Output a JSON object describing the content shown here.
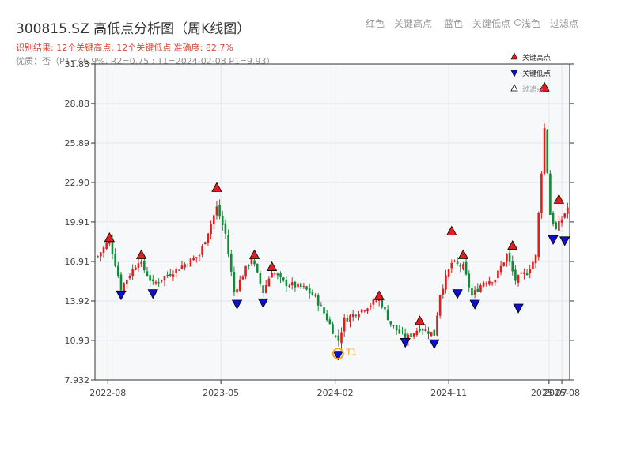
{
  "header": {
    "title": "300815.SZ 高低点分析图（周K线图）",
    "result_line": "识别结果: 12个关键高点, 12个关键低点  准确度: 82.7%",
    "quality_line": "优质：否（P1=46.9%, R2=0.75 ; T1=2024-02-08 P1=9.93）"
  },
  "top_legend": {
    "red": "红色—关键高点",
    "blue": "蓝色—关键低点",
    "light": "浅色—过滤点"
  },
  "colors": {
    "up": "#e11d1d",
    "down": "#138a38",
    "high_marker": "#e11d1d",
    "low_marker": "#1010cc",
    "t1_marker": "#f5a623",
    "plot_bg": "#f6f8fa",
    "grid": "#e3e6ea"
  },
  "chart_data": {
    "type": "candlestick",
    "title": "300815.SZ 高低点分析图（周K线图）",
    "x_ticks": [
      "2022-08",
      "2023-05",
      "2024-02",
      "2024-11",
      "2025-07",
      "2025-08"
    ],
    "y_ticks": [
      "7.932",
      "10.93",
      "13.92",
      "16.91",
      "19.91",
      "22.90",
      "25.89",
      "28.88",
      "31.88"
    ],
    "ylim": [
      7.932,
      31.88
    ],
    "x_range": [
      "2022-07-01",
      "2025-08-20"
    ],
    "legend": {
      "position": "top-right",
      "items": [
        {
          "label": "关键高点",
          "symbol": "triangle-up",
          "color": "#e11d1d"
        },
        {
          "label": "关键低点",
          "symbol": "triangle-down",
          "color": "#1010cc"
        },
        {
          "label": "过滤点",
          "symbol": "triangle-up-hollow",
          "color": "#000000"
        }
      ]
    },
    "anchors": [
      [
        "2022-07-08",
        17.3
      ],
      [
        "2022-08-05",
        18.6
      ],
      [
        "2022-09-02",
        14.9
      ],
      [
        "2022-10-14",
        17.0
      ],
      [
        "2022-11-18",
        15.2
      ],
      [
        "2023-01-13",
        16.3
      ],
      [
        "2023-03-10",
        17.4
      ],
      [
        "2023-04-21",
        21.0
      ],
      [
        "2023-05-12",
        19.0
      ],
      [
        "2023-06-02",
        14.6
      ],
      [
        "2023-07-14",
        17.2
      ],
      [
        "2023-08-11",
        14.6
      ],
      [
        "2023-09-01",
        16.2
      ],
      [
        "2023-09-29",
        15.3
      ],
      [
        "2023-11-17",
        14.9
      ],
      [
        "2023-12-15",
        14.2
      ],
      [
        "2024-01-12",
        12.6
      ],
      [
        "2024-02-08",
        10.8
      ],
      [
        "2024-02-23",
        12.5
      ],
      [
        "2024-04-12",
        13.4
      ],
      [
        "2024-05-17",
        14.1
      ],
      [
        "2024-06-14",
        12.2
      ],
      [
        "2024-07-19",
        11.0
      ],
      [
        "2024-08-23",
        11.9
      ],
      [
        "2024-09-27",
        11.4
      ],
      [
        "2024-10-11",
        14.5
      ],
      [
        "2024-11-08",
        16.8
      ],
      [
        "2024-12-06",
        16.5
      ],
      [
        "2024-12-27",
        14.3
      ],
      [
        "2025-01-24",
        15.4
      ],
      [
        "2025-02-21",
        15.6
      ],
      [
        "2025-03-21",
        17.4
      ],
      [
        "2025-04-11",
        15.5
      ],
      [
        "2025-05-09",
        16.1
      ],
      [
        "2025-05-30",
        17.3
      ],
      [
        "2025-06-20",
        27.0
      ],
      [
        "2025-07-04",
        20.5
      ],
      [
        "2025-07-18",
        19.3
      ],
      [
        "2025-08-15",
        21.0
      ]
    ],
    "key_highs": [
      {
        "date": "2022-08-05",
        "price": 18.6
      },
      {
        "date": "2022-10-21",
        "price": 17.3
      },
      {
        "date": "2023-04-21",
        "price": 22.4
      },
      {
        "date": "2023-07-21",
        "price": 17.3
      },
      {
        "date": "2023-09-01",
        "price": 16.4
      },
      {
        "date": "2024-05-17",
        "price": 14.2
      },
      {
        "date": "2024-08-23",
        "price": 12.3
      },
      {
        "date": "2024-11-08",
        "price": 19.1
      },
      {
        "date": "2024-12-06",
        "price": 17.3
      },
      {
        "date": "2025-04-04",
        "price": 18.0
      },
      {
        "date": "2025-06-20",
        "price": 30.0
      },
      {
        "date": "2025-07-25",
        "price": 21.5
      }
    ],
    "key_lows": [
      {
        "date": "2022-09-02",
        "price": 14.5
      },
      {
        "date": "2022-11-18",
        "price": 14.6
      },
      {
        "date": "2023-06-09",
        "price": 13.8
      },
      {
        "date": "2023-08-11",
        "price": 13.9
      },
      {
        "date": "2024-07-19",
        "price": 10.9
      },
      {
        "date": "2024-09-27",
        "price": 10.8
      },
      {
        "date": "2024-11-22",
        "price": 14.6
      },
      {
        "date": "2025-01-03",
        "price": 13.8
      },
      {
        "date": "2025-04-18",
        "price": 13.5
      },
      {
        "date": "2025-07-11",
        "price": 18.7
      },
      {
        "date": "2025-08-08",
        "price": 18.6
      },
      {
        "date": "2024-02-08",
        "price": 9.93
      }
    ],
    "t1": {
      "date": "2024-02-08",
      "price": 9.93,
      "label": "T1"
    }
  }
}
